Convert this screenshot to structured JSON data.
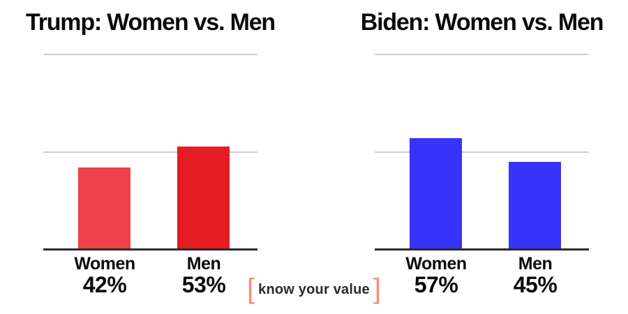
{
  "chart_data": [
    {
      "type": "bar",
      "title": "Trump: Women vs. Men",
      "categories": [
        "Women",
        "Men"
      ],
      "values": [
        42,
        53
      ],
      "value_labels": [
        "42%",
        "53%"
      ],
      "unit": "%",
      "ylim": [
        0,
        100
      ],
      "gridlines_at": [
        50,
        100
      ],
      "grid_on": true,
      "legend": "none",
      "bar_colors": [
        "#ED424B",
        "#E61C24"
      ]
    },
    {
      "type": "bar",
      "title": "Biden: Women vs. Men",
      "categories": [
        "Women",
        "Men"
      ],
      "values": [
        57,
        45
      ],
      "value_labels": [
        "57%",
        "45%"
      ],
      "unit": "%",
      "ylim": [
        0,
        100
      ],
      "gridlines_at": [
        50,
        100
      ],
      "grid_on": true,
      "legend": "none",
      "bar_colors": [
        "#3733FA",
        "#3733FA"
      ]
    }
  ],
  "logo": {
    "left_bracket": "[",
    "text": "know your value",
    "right_bracket": "]",
    "bracket_color": "#F09079",
    "text_color": "#2D2A2A"
  },
  "style": {
    "background": "#FFFFFF",
    "gridline_color": "#CCCCCC",
    "axis_color": "#2B2B2B",
    "title_color": "#0A0A0A"
  }
}
